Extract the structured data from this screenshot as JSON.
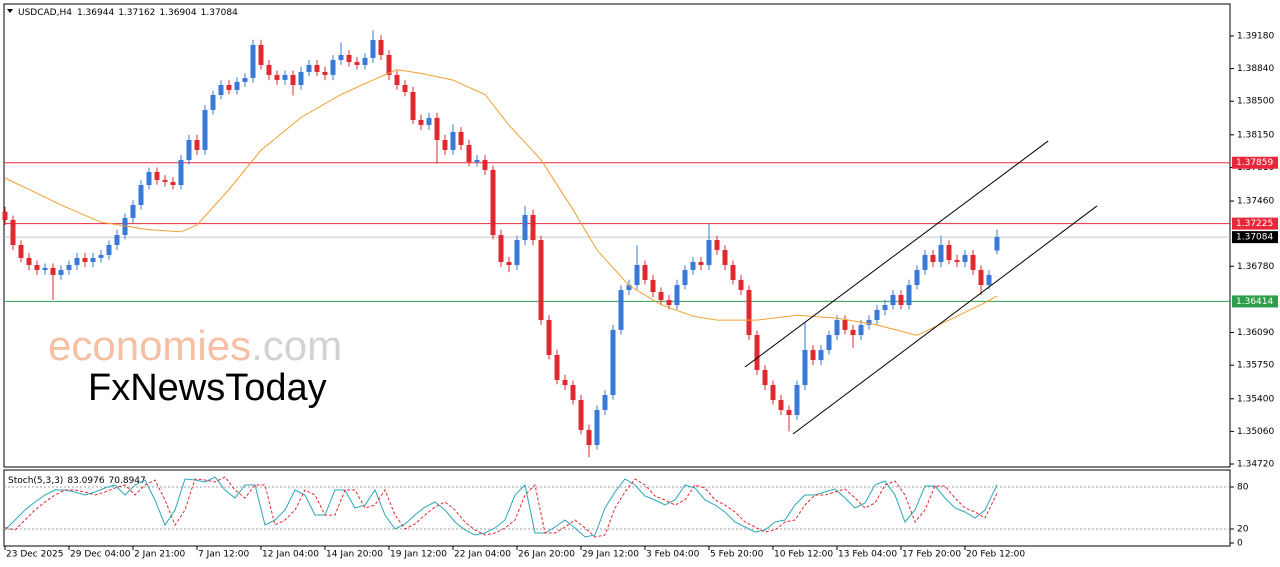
{
  "header": {
    "symbol": "USDCAD,H4",
    "ohlc": [
      1.36944,
      1.37162,
      1.36904,
      1.37084
    ]
  },
  "watermark": {
    "brand": "economies",
    "suffix": ".com",
    "second": "FxNewsToday"
  },
  "chart_data": [
    {
      "type": "candlestick",
      "up_color": "#3a78d8",
      "down_color": "#e0282e",
      "x": [
        0,
        1,
        2,
        3,
        4,
        5,
        6,
        7,
        8,
        9,
        10,
        11,
        12,
        13,
        14,
        15,
        16,
        17,
        18,
        19,
        20,
        21,
        22,
        23,
        24,
        25,
        26,
        27,
        28,
        29,
        30,
        31,
        32,
        33,
        34,
        35,
        36,
        37,
        38,
        39,
        40,
        41,
        42,
        43,
        44,
        45,
        46,
        47,
        48,
        49,
        50,
        51,
        52,
        53,
        54,
        55,
        56,
        57,
        58,
        59,
        60,
        61,
        62,
        63,
        64,
        65,
        66,
        67,
        68,
        69,
        70,
        71,
        72,
        73,
        74,
        75,
        76,
        77,
        78,
        79,
        80,
        81,
        82,
        83,
        84,
        85,
        86,
        87,
        88,
        89,
        90,
        91,
        92,
        93,
        94,
        95,
        96,
        97,
        98,
        99,
        100,
        101,
        102,
        103,
        104,
        105,
        106,
        107,
        108,
        109,
        110,
        111,
        112,
        113,
        114,
        115,
        116,
        117,
        118,
        119,
        120,
        121,
        122,
        123,
        124
      ],
      "open": [
        1.3735,
        1.37263,
        1.37002,
        1.36867,
        1.36794,
        1.36742,
        1.36763,
        1.3669,
        1.36742,
        1.36794,
        1.36867,
        1.36825,
        1.36867,
        1.36898,
        1.37002,
        1.37106,
        1.37284,
        1.37419,
        1.37627,
        1.37763,
        1.3768,
        1.37659,
        1.37627,
        1.37888,
        1.38096,
        1.37992,
        1.38409,
        1.38565,
        1.38669,
        1.38617,
        1.38701,
        1.38742,
        1.39086,
        1.38878,
        1.38774,
        1.38722,
        1.38774,
        1.38669,
        1.38805,
        1.38878,
        1.38805,
        1.38774,
        1.3893,
        1.38982,
        1.38909,
        1.38878,
        1.38951,
        1.39138,
        1.38982,
        1.38774,
        1.38669,
        1.38596,
        1.38305,
        1.38253,
        1.38326,
        1.38096,
        1.37992,
        1.3818,
        1.38044,
        1.37867,
        1.37888,
        1.37784,
        1.37106,
        1.36825,
        1.36794,
        1.37054,
        1.37315,
        1.37054,
        1.36221,
        1.35856,
        1.35596,
        1.35543,
        1.35387,
        1.35075,
        1.34918,
        1.35283,
        1.35439,
        1.36117,
        1.36533,
        1.36585,
        1.36794,
        1.36638,
        1.36512,
        1.36429,
        1.36377,
        1.36585,
        1.36742,
        1.36825,
        1.36794,
        1.37054,
        1.3695,
        1.36794,
        1.36638,
        1.36533,
        1.36064,
        1.357,
        1.35543,
        1.35387,
        1.35283,
        1.35231,
        1.35543,
        1.35908,
        1.35804,
        1.35908,
        1.36064,
        1.36221,
        1.36117,
        1.36064,
        1.36169,
        1.36221,
        1.36325,
        1.36377,
        1.36481,
        1.36377,
        1.36585,
        1.36742,
        1.36898,
        1.36825,
        1.37002,
        1.36846,
        1.36825,
        1.36898,
        1.36742,
        1.36585,
        1.36944
      ],
      "high": [
        1.374,
        1.3731,
        1.3705,
        1.3692,
        1.3684,
        1.3681,
        1.3681,
        1.3679,
        1.3684,
        1.3692,
        1.3692,
        1.3692,
        1.3695,
        1.3705,
        1.3716,
        1.3733,
        1.3747,
        1.3768,
        1.3781,
        1.3781,
        1.3773,
        1.3771,
        1.3794,
        1.3815,
        1.3815,
        1.3846,
        1.3861,
        1.3872,
        1.3872,
        1.3875,
        1.3879,
        1.3914,
        1.3914,
        1.3893,
        1.3882,
        1.3882,
        1.3882,
        1.3886,
        1.3893,
        1.3893,
        1.3886,
        1.3898,
        1.3911,
        1.3903,
        1.3896,
        1.39,
        1.3924,
        1.3919,
        1.3903,
        1.3882,
        1.3872,
        1.3865,
        1.3836,
        1.3838,
        1.3838,
        1.3815,
        1.3826,
        1.3823,
        1.381,
        1.3794,
        1.3794,
        1.3783,
        1.3716,
        1.3688,
        1.371,
        1.3741,
        1.3737,
        1.371,
        1.3627,
        1.3591,
        1.3565,
        1.3559,
        1.3544,
        1.3513,
        1.3533,
        1.3549,
        1.3617,
        1.3658,
        1.3664,
        1.37,
        1.3684,
        1.3669,
        1.3656,
        1.3648,
        1.3664,
        1.3679,
        1.3688,
        1.3688,
        1.3722,
        1.371,
        1.37,
        1.3684,
        1.3669,
        1.3658,
        1.3611,
        1.3575,
        1.3559,
        1.3544,
        1.3533,
        1.3559,
        1.362,
        1.3596,
        1.3596,
        1.3611,
        1.3627,
        1.3627,
        1.3617,
        1.3622,
        1.3627,
        1.3638,
        1.3643,
        1.3653,
        1.3653,
        1.3664,
        1.3679,
        1.3695,
        1.3695,
        1.371,
        1.3705,
        1.369,
        1.3695,
        1.3695,
        1.3679,
        1.3674,
        1.37162
      ],
      "low": [
        1.3721,
        1.3695,
        1.3682,
        1.3674,
        1.3669,
        1.3669,
        1.3643,
        1.3664,
        1.3669,
        1.3674,
        1.3677,
        1.3677,
        1.3682,
        1.3685,
        1.3695,
        1.3706,
        1.3723,
        1.3737,
        1.3758,
        1.3763,
        1.3761,
        1.3758,
        1.3758,
        1.3784,
        1.3794,
        1.3794,
        1.3836,
        1.3852,
        1.3857,
        1.3857,
        1.3865,
        1.3869,
        1.3883,
        1.3872,
        1.3867,
        1.3867,
        1.3856,
        1.3862,
        1.3876,
        1.3876,
        1.3872,
        1.3872,
        1.3888,
        1.3886,
        1.3883,
        1.3883,
        1.389,
        1.3893,
        1.3872,
        1.3862,
        1.3855,
        1.3826,
        1.382,
        1.382,
        1.3785,
        1.3794,
        1.3794,
        1.3799,
        1.3782,
        1.3782,
        1.3773,
        1.3706,
        1.3677,
        1.3672,
        1.3674,
        1.37,
        1.37,
        1.3617,
        1.3581,
        1.3555,
        1.3549,
        1.3534,
        1.3503,
        1.3479,
        1.3487,
        1.3523,
        1.3539,
        1.3607,
        1.3648,
        1.3654,
        1.3659,
        1.3646,
        1.3638,
        1.3633,
        1.3633,
        1.3654,
        1.3669,
        1.3674,
        1.3674,
        1.369,
        1.3674,
        1.3659,
        1.3648,
        1.3601,
        1.3565,
        1.3549,
        1.3534,
        1.3523,
        1.3506,
        1.3518,
        1.3549,
        1.3575,
        1.3575,
        1.3586,
        1.3601,
        1.3607,
        1.3593,
        1.3601,
        1.3612,
        1.3617,
        1.3627,
        1.3633,
        1.3633,
        1.3633,
        1.3654,
        1.3669,
        1.3677,
        1.3677,
        1.368,
        1.3677,
        1.3677,
        1.3669,
        1.3648,
        1.3654,
        1.36904
      ],
      "close": [
        1.37263,
        1.37002,
        1.36867,
        1.36794,
        1.36742,
        1.36763,
        1.3669,
        1.36742,
        1.36794,
        1.36867,
        1.36825,
        1.36867,
        1.36898,
        1.37002,
        1.37106,
        1.37284,
        1.37419,
        1.37627,
        1.37763,
        1.3768,
        1.37659,
        1.37627,
        1.37888,
        1.38096,
        1.37992,
        1.38409,
        1.38565,
        1.38669,
        1.38617,
        1.38701,
        1.38742,
        1.39086,
        1.38878,
        1.38774,
        1.38722,
        1.38774,
        1.38669,
        1.38805,
        1.38878,
        1.38805,
        1.38774,
        1.3893,
        1.38982,
        1.38909,
        1.38878,
        1.38951,
        1.39138,
        1.38982,
        1.38774,
        1.38669,
        1.38596,
        1.38305,
        1.38253,
        1.38326,
        1.38096,
        1.37992,
        1.3818,
        1.38044,
        1.37867,
        1.37888,
        1.37784,
        1.37106,
        1.36825,
        1.36794,
        1.37054,
        1.37315,
        1.37054,
        1.36221,
        1.35856,
        1.35596,
        1.35543,
        1.35387,
        1.35075,
        1.34918,
        1.35283,
        1.35439,
        1.36117,
        1.36533,
        1.36585,
        1.36794,
        1.36638,
        1.36512,
        1.36429,
        1.36377,
        1.36585,
        1.36742,
        1.36825,
        1.36794,
        1.37054,
        1.3695,
        1.36794,
        1.36638,
        1.36533,
        1.36064,
        1.357,
        1.35543,
        1.35387,
        1.35283,
        1.35231,
        1.35543,
        1.35908,
        1.35804,
        1.35908,
        1.36064,
        1.36221,
        1.36117,
        1.36064,
        1.36169,
        1.36221,
        1.36325,
        1.36377,
        1.36481,
        1.36377,
        1.36585,
        1.36742,
        1.36898,
        1.36825,
        1.37002,
        1.36846,
        1.36825,
        1.36898,
        1.36742,
        1.36585,
        1.3669,
        1.37084
      ],
      "xlim": [
        -0.125,
        153.125
      ],
      "ylim": [
        1.34689,
        1.39513
      ],
      "yticks": [
        {
          "value": 1.3918,
          "label": "1.39180"
        },
        {
          "value": 1.3884,
          "label": "1.38840"
        },
        {
          "value": 1.385,
          "label": "1.38500"
        },
        {
          "value": 1.3815,
          "label": "1.38150"
        },
        {
          "value": 1.3781,
          "label": "1.37810"
        },
        {
          "value": 1.3746,
          "label": "1.37460"
        },
        {
          "value": 1.3678,
          "label": "1.36780"
        },
        {
          "value": 1.3609,
          "label": "1.36090"
        },
        {
          "value": 1.3575,
          "label": "1.35750"
        },
        {
          "value": 1.354,
          "label": "1.35400"
        },
        {
          "value": 1.3506,
          "label": "1.35060"
        },
        {
          "value": 1.3472,
          "label": "1.34720"
        }
      ],
      "xticks": [
        {
          "value": 0,
          "label": "23 Dec 2025"
        },
        {
          "value": 8,
          "label": "29 Dec 04:00"
        },
        {
          "value": 16,
          "label": "2 Jan 21:00"
        },
        {
          "value": 24,
          "label": "7 Jan 12:00"
        },
        {
          "value": 32,
          "label": "12 Jan 04:00"
        },
        {
          "value": 40,
          "label": "14 Jan 20:00"
        },
        {
          "value": 48,
          "label": "19 Jan 12:00"
        },
        {
          "value": 56,
          "label": "22 Jan 04:00"
        },
        {
          "value": 64,
          "label": "26 Jan 20:00"
        },
        {
          "value": 72,
          "label": "29 Jan 12:00"
        },
        {
          "value": 80,
          "label": "3 Feb 04:00"
        },
        {
          "value": 88,
          "label": "5 Feb 20:00"
        },
        {
          "value": 96,
          "label": "10 Feb 12:00"
        },
        {
          "value": 104,
          "label": "13 Feb 04:00"
        },
        {
          "value": 112,
          "label": "17 Feb 20:00"
        },
        {
          "value": 120,
          "label": "20 Feb 12:00"
        }
      ],
      "levels": [
        {
          "value": 1.37859,
          "color": "#e8283a"
        },
        {
          "value": 1.37225,
          "color": "#e8283a"
        },
        {
          "value": 1.37084,
          "color": "#c8c8c8",
          "label_color": "#000000"
        },
        {
          "value": 1.36414,
          "color": "#2e9e4a"
        }
      ],
      "ma": {
        "color": "#f0a030",
        "x": [
          0,
          7,
          12,
          18,
          22,
          24,
          28,
          32,
          37,
          42,
          46,
          49,
          52,
          56,
          60,
          63,
          67,
          71,
          74,
          78,
          82,
          86,
          89,
          94,
          99,
          104,
          109,
          114,
          118,
          122,
          124
        ],
        "values": [
          1.377,
          1.3742,
          1.3724,
          1.3716,
          1.3714,
          1.3721,
          1.3758,
          1.3799,
          1.3833,
          1.3857,
          1.3872,
          1.3883,
          1.3879,
          1.3872,
          1.3857,
          1.3825,
          1.3789,
          1.3737,
          1.3695,
          1.3658,
          1.3638,
          1.3626,
          1.3622,
          1.3622,
          1.3627,
          1.3624,
          1.3617,
          1.3606,
          1.3622,
          1.3638,
          1.3647
        ]
      },
      "trendlines": [
        {
          "color": "#000000",
          "x": [
            92.5,
            130.4
          ],
          "values": [
            1.35731,
            1.38086
          ]
        },
        {
          "color": "#000000",
          "x": [
            98.5,
            136.5
          ],
          "values": [
            1.35033,
            1.37409
          ]
        }
      ]
    },
    {
      "type": "stochastic",
      "label": "Stoch(5,3,3)",
      "readout": [
        83.0976,
        70.8947
      ],
      "xlim": [
        -0.125,
        153.125
      ],
      "ylim": [
        -4.3,
        104.3
      ],
      "yticks": [
        80,
        20,
        0
      ],
      "levels": [
        80,
        20
      ],
      "x": [
        0,
        1.25,
        2.5,
        3.75,
        5,
        6.25,
        7.5,
        8.75,
        10,
        11.25,
        12.5,
        13.75,
        15,
        16.25,
        17.5,
        18.75,
        20,
        21.25,
        22.5,
        23.75,
        25,
        26.25,
        27.5,
        28.75,
        30,
        31.25,
        32.5,
        33.75,
        35,
        36.25,
        37.5,
        38.75,
        40,
        41.25,
        42.5,
        43.75,
        45,
        46.25,
        47.5,
        48.75,
        50,
        51.25,
        52.5,
        53.75,
        55,
        56.25,
        57.5,
        58.75,
        60,
        61.25,
        62.5,
        63.75,
        65,
        66.25,
        67.5,
        68.75,
        70,
        71.25,
        72.5,
        73.75,
        75,
        76.25,
        77.5,
        78.75,
        80,
        81.25,
        82.5,
        83.75,
        85,
        86.25,
        87.5,
        88.75,
        90,
        91.25,
        92.5,
        93.75,
        95,
        96.25,
        97.5,
        98.75,
        100,
        101.25,
        102.5,
        103.75,
        105,
        106.25,
        107.5,
        108.75,
        110,
        111.25,
        112.5,
        113.75,
        115,
        116.25,
        117.5,
        118.75,
        120,
        121.25,
        122.5,
        124
      ],
      "series": [
        {
          "color": "#2aa7b8",
          "values": [
            18.6,
            32.9,
            47.1,
            58.6,
            68.6,
            75.7,
            75.7,
            72.9,
            68.6,
            72.9,
            78.6,
            82.9,
            68.6,
            82.9,
            90,
            61.4,
            25.7,
            47.1,
            91.4,
            90,
            87.1,
            94.3,
            75.7,
            64.3,
            82.9,
            82.9,
            25.7,
            32.9,
            47.1,
            75.7,
            68.6,
            40,
            40,
            75.7,
            75.7,
            50,
            54.3,
            75.7,
            40,
            20,
            27.1,
            40,
            51.4,
            58.6,
            47.1,
            30,
            18.6,
            11.4,
            14.3,
            21.4,
            32.9,
            68.6,
            82.9,
            14.3,
            14.3,
            22.9,
            32.9,
            21.4,
            8.6,
            11.4,
            50,
            72.9,
            91.4,
            82.9,
            67.1,
            61.4,
            54.3,
            61.4,
            82.9,
            78.6,
            61.4,
            54.3,
            44.3,
            30,
            22.9,
            15.7,
            18.6,
            30,
            32.9,
            54.3,
            68.6,
            68.6,
            72.9,
            77.1,
            64.3,
            50,
            57.1,
            82.9,
            88.6,
            68.6,
            30,
            47.1,
            81.4,
            81.4,
            64.3,
            50,
            44.3,
            35.7,
            47.1,
            83.0976
          ]
        },
        {
          "color": "#e0282e",
          "dashed": true,
          "values": [
            22,
            18.6,
            32.9,
            47.1,
            58.6,
            68.6,
            75.7,
            75.7,
            72.9,
            68.6,
            72.9,
            78.6,
            82.9,
            68.6,
            82.9,
            90,
            61.4,
            25.7,
            47.1,
            91.4,
            90,
            87.1,
            94.3,
            75.7,
            64.3,
            82.9,
            82.9,
            25.7,
            32.9,
            47.1,
            75.7,
            68.6,
            40,
            40,
            75.7,
            75.7,
            50,
            54.3,
            75.7,
            40,
            20,
            27.1,
            40,
            51.4,
            58.6,
            47.1,
            30,
            18.6,
            11.4,
            14.3,
            21.4,
            32.9,
            68.6,
            82.9,
            14.3,
            14.3,
            22.9,
            32.9,
            21.4,
            8.6,
            11.4,
            50,
            72.9,
            91.4,
            82.9,
            67.1,
            61.4,
            54.3,
            61.4,
            82.9,
            78.6,
            61.4,
            54.3,
            44.3,
            30,
            22.9,
            15.7,
            18.6,
            30,
            32.9,
            54.3,
            68.6,
            68.6,
            72.9,
            77.1,
            64.3,
            50,
            57.1,
            82.9,
            88.6,
            68.6,
            30,
            47.1,
            81.4,
            81.4,
            64.3,
            50,
            44.3,
            35.7,
            70.8947
          ]
        }
      ]
    }
  ]
}
